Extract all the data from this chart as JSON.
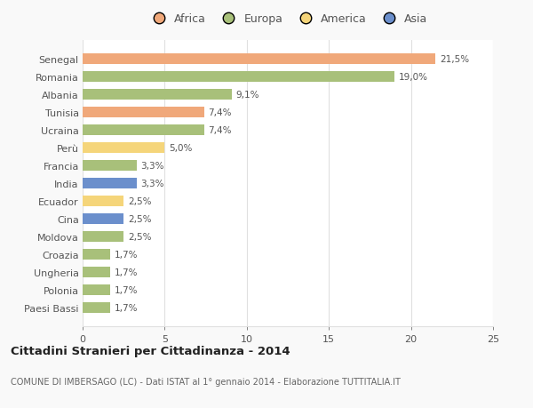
{
  "countries": [
    "Paesi Bassi",
    "Polonia",
    "Ungheria",
    "Croazia",
    "Moldova",
    "Cina",
    "Ecuador",
    "India",
    "Francia",
    "Perù",
    "Ucraina",
    "Tunisia",
    "Albania",
    "Romania",
    "Senegal"
  ],
  "values": [
    1.7,
    1.7,
    1.7,
    1.7,
    2.5,
    2.5,
    2.5,
    3.3,
    3.3,
    5.0,
    7.4,
    7.4,
    9.1,
    19.0,
    21.5
  ],
  "labels": [
    "1,7%",
    "1,7%",
    "1,7%",
    "1,7%",
    "2,5%",
    "2,5%",
    "2,5%",
    "3,3%",
    "3,3%",
    "5,0%",
    "7,4%",
    "7,4%",
    "9,1%",
    "19,0%",
    "21,5%"
  ],
  "colors": [
    "#a8c07a",
    "#a8c07a",
    "#a8c07a",
    "#a8c07a",
    "#a8c07a",
    "#6b8fcc",
    "#f5d57a",
    "#6b8fcc",
    "#a8c07a",
    "#f5d57a",
    "#a8c07a",
    "#f0a87a",
    "#a8c07a",
    "#a8c07a",
    "#f0a87a"
  ],
  "continent_colors": {
    "Africa": "#f0a87a",
    "Europa": "#a8c07a",
    "America": "#f5d57a",
    "Asia": "#6b8fcc"
  },
  "xlim": [
    0,
    25
  ],
  "xticks": [
    0,
    5,
    10,
    15,
    20,
    25
  ],
  "title": "Cittadini Stranieri per Cittadinanza - 2014",
  "subtitle": "COMUNE DI IMBERSAGO (LC) - Dati ISTAT al 1° gennaio 2014 - Elaborazione TUTTITALIA.IT",
  "bg_color": "#f9f9f9",
  "plot_bg_color": "#ffffff",
  "grid_color": "#e0e0e0",
  "text_color": "#555555",
  "title_color": "#222222",
  "subtitle_color": "#666666",
  "bar_height": 0.6
}
